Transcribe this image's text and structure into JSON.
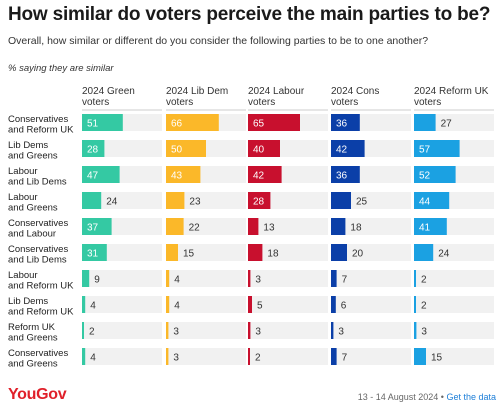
{
  "title": "How similar do voters perceive the main parties to be?",
  "subtitle": "Overall, how similar or different do you consider the following parties to be to one another?",
  "note": "% saying they are similar",
  "footer": {
    "logo": "YouGov",
    "date": "13 - 14 August 2024 • ",
    "link": "Get the data"
  },
  "chart_data": {
    "type": "bar",
    "xlim": [
      0,
      100
    ],
    "categories": [
      [
        "Conservatives",
        "and Reform UK"
      ],
      [
        "Lib Dems",
        "and Greens"
      ],
      [
        "Labour",
        "and Lib Dems"
      ],
      [
        "Labour",
        "and Greens"
      ],
      [
        "Conservatives",
        "and Labour"
      ],
      [
        "Conservatives",
        "and Lib Dems"
      ],
      [
        "Labour",
        "and Reform UK"
      ],
      [
        "Lib Dems",
        "and Reform UK"
      ],
      [
        "Reform UK",
        "and Greens"
      ],
      [
        "Conservatives",
        "and Greens"
      ]
    ],
    "series": [
      {
        "name": [
          "2024 Green",
          "voters"
        ],
        "color": "#34c9a3",
        "values": [
          51,
          28,
          47,
          24,
          37,
          31,
          9,
          4,
          2,
          4
        ]
      },
      {
        "name": [
          "2024 Lib Dem",
          "voters"
        ],
        "color": "#fbb829",
        "values": [
          66,
          50,
          43,
          23,
          22,
          15,
          4,
          4,
          3,
          3
        ]
      },
      {
        "name": [
          "2024 Labour",
          "voters"
        ],
        "color": "#c8102e",
        "values": [
          65,
          40,
          42,
          28,
          13,
          18,
          3,
          5,
          3,
          2
        ]
      },
      {
        "name": [
          "2024 Cons",
          "voters"
        ],
        "color": "#0b3fa8",
        "values": [
          36,
          42,
          36,
          25,
          18,
          20,
          7,
          6,
          3,
          7
        ]
      },
      {
        "name": [
          "2024 Reform UK",
          "voters"
        ],
        "color": "#1ba1e2",
        "values": [
          27,
          57,
          52,
          44,
          41,
          24,
          2,
          2,
          3,
          15
        ]
      }
    ]
  }
}
